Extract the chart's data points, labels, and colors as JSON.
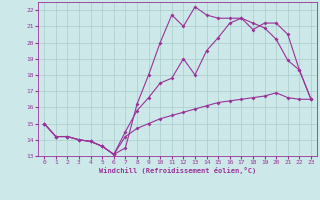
{
  "xlabel": "Windchill (Refroidissement éolien,°C)",
  "x": [
    0,
    1,
    2,
    3,
    4,
    5,
    6,
    7,
    8,
    9,
    10,
    11,
    12,
    13,
    14,
    15,
    16,
    17,
    18,
    19,
    20,
    21,
    22,
    23
  ],
  "line1": [
    15.0,
    14.2,
    14.2,
    14.0,
    13.9,
    13.6,
    13.1,
    13.5,
    16.2,
    18.0,
    20.0,
    21.7,
    21.0,
    22.2,
    21.7,
    21.5,
    21.5,
    21.5,
    21.2,
    20.9,
    20.2,
    18.9,
    18.3,
    16.5
  ],
  "line2": [
    15.0,
    14.2,
    14.2,
    14.0,
    13.9,
    13.6,
    13.1,
    14.5,
    15.8,
    16.6,
    17.5,
    17.8,
    19.0,
    18.0,
    19.5,
    20.3,
    21.2,
    21.5,
    20.8,
    21.2,
    21.2,
    20.5,
    18.3,
    16.5
  ],
  "line3": [
    15.0,
    14.2,
    14.2,
    14.0,
    13.9,
    13.6,
    13.1,
    14.2,
    14.7,
    15.0,
    15.3,
    15.5,
    15.7,
    15.9,
    16.1,
    16.3,
    16.4,
    16.5,
    16.6,
    16.7,
    16.9,
    16.6,
    16.5,
    16.5
  ],
  "line_color": "#993399",
  "bg_color": "#cce8e8",
  "grid_color": "#aacccc",
  "ylim": [
    13,
    22.5
  ],
  "xlim": [
    -0.5,
    23.5
  ],
  "yticks": [
    13,
    14,
    15,
    16,
    17,
    18,
    19,
    20,
    21,
    22
  ],
  "xticks": [
    0,
    1,
    2,
    3,
    4,
    5,
    6,
    7,
    8,
    9,
    10,
    11,
    12,
    13,
    14,
    15,
    16,
    17,
    18,
    19,
    20,
    21,
    22,
    23
  ]
}
